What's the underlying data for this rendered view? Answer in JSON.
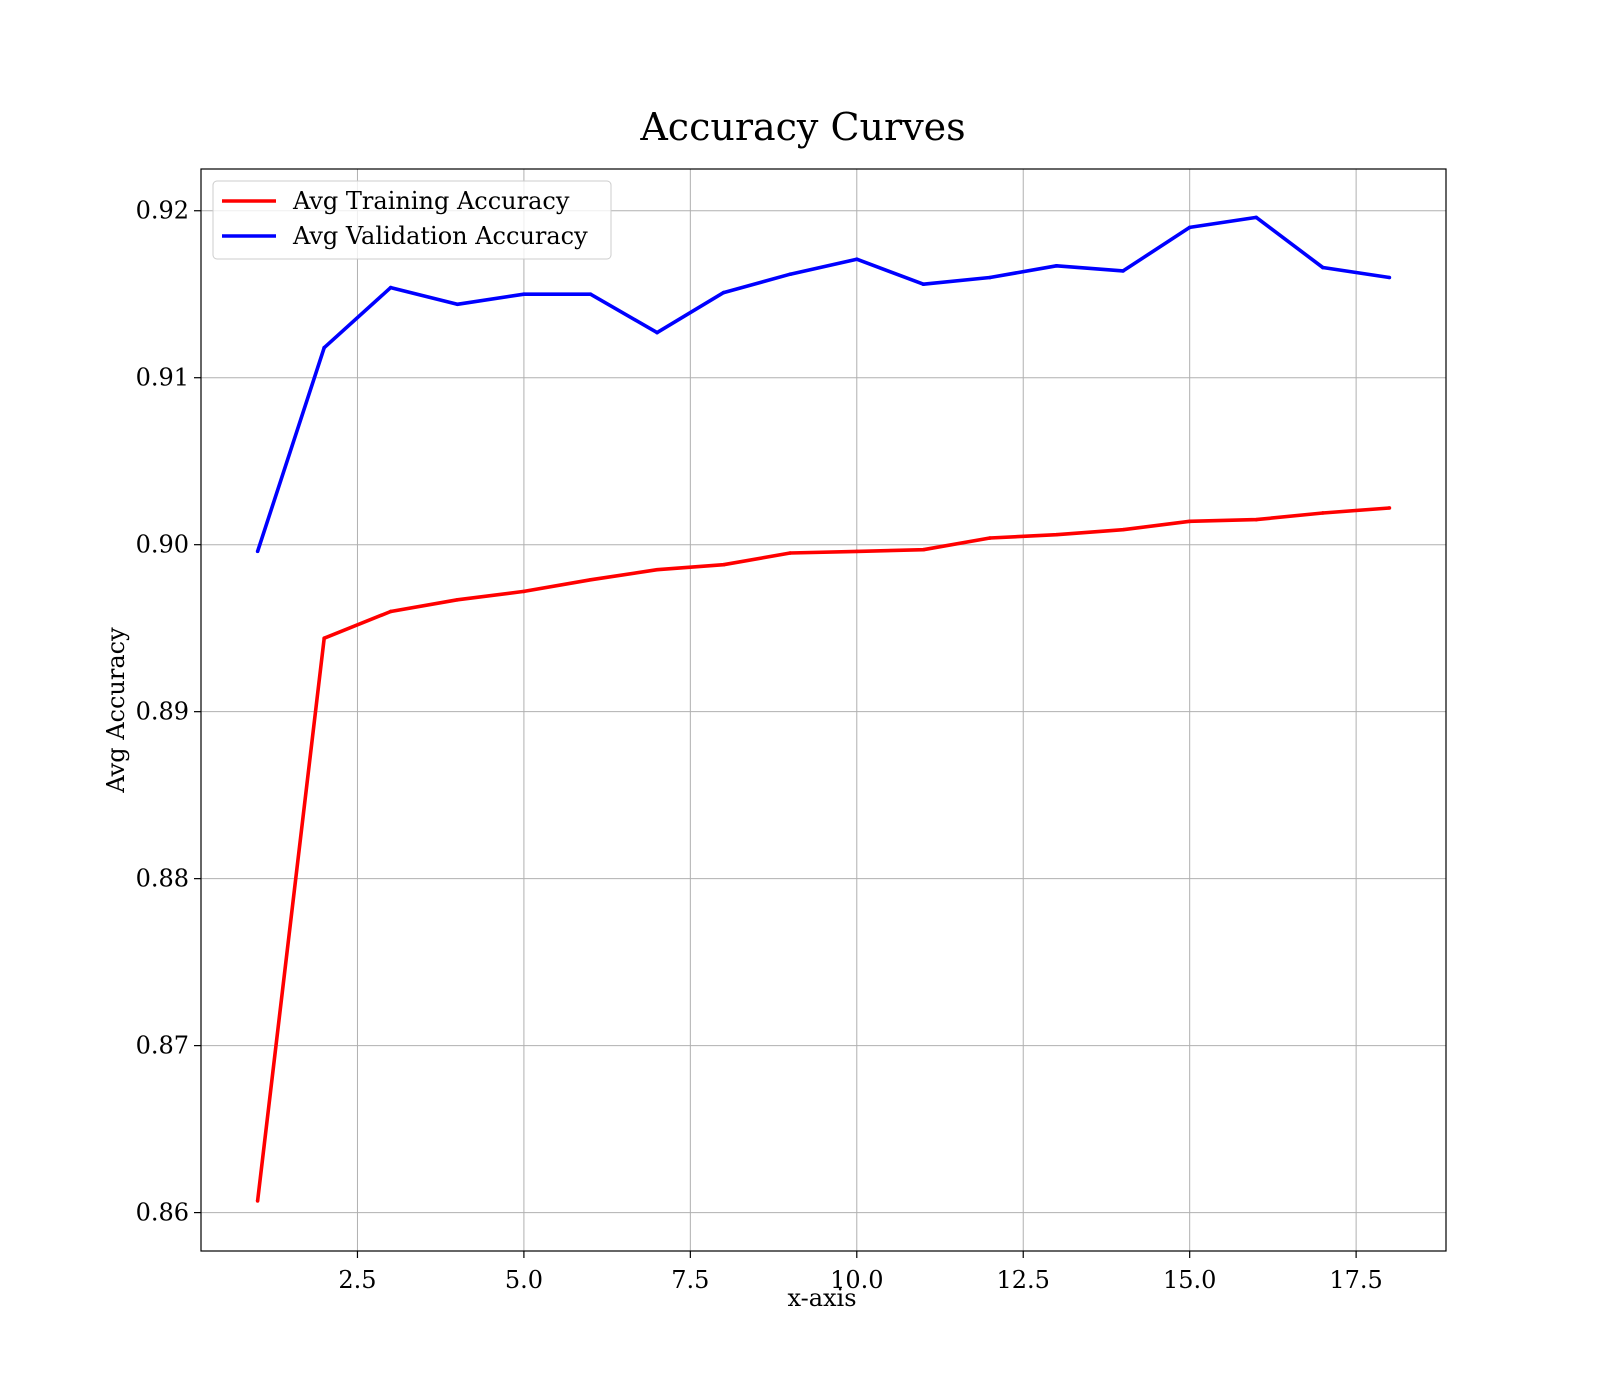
{
  "chart_data": {
    "type": "line",
    "title": "Accuracy Curves",
    "xlabel": "x-axis",
    "ylabel": "Avg Accuracy",
    "xlim": [
      0.15,
      18.85
    ],
    "ylim": [
      0.8577,
      0.9225
    ],
    "xticks": [
      2.5,
      5.0,
      7.5,
      10.0,
      12.5,
      15.0,
      17.5
    ],
    "xtick_labels": [
      "2.5",
      "5.0",
      "7.5",
      "10.0",
      "12.5",
      "15.0",
      "17.5"
    ],
    "yticks": [
      0.86,
      0.87,
      0.88,
      0.89,
      0.9,
      0.91,
      0.92
    ],
    "ytick_labels": [
      "0.86",
      "0.87",
      "0.88",
      "0.89",
      "0.90",
      "0.91",
      "0.92"
    ],
    "grid": true,
    "legend_position": "top-left",
    "x": [
      1,
      2,
      3,
      4,
      5,
      6,
      7,
      8,
      9,
      10,
      11,
      12,
      13,
      14,
      15,
      16,
      17,
      18
    ],
    "series": [
      {
        "name": "Avg Training Accuracy",
        "color": "#ff0000",
        "values": [
          0.8607,
          0.8944,
          0.896,
          0.8967,
          0.8972,
          0.8979,
          0.8985,
          0.8988,
          0.8995,
          0.8996,
          0.8997,
          0.9004,
          0.9006,
          0.9009,
          0.9014,
          0.9015,
          0.9019,
          0.9022
        ]
      },
      {
        "name": "Avg Validation Accuracy",
        "color": "#0000ff",
        "values": [
          0.8996,
          0.9118,
          0.9154,
          0.9144,
          0.915,
          0.915,
          0.9127,
          0.9151,
          0.9162,
          0.9171,
          0.9156,
          0.916,
          0.9167,
          0.9164,
          0.919,
          0.9196,
          0.9166,
          0.916
        ]
      }
    ]
  }
}
